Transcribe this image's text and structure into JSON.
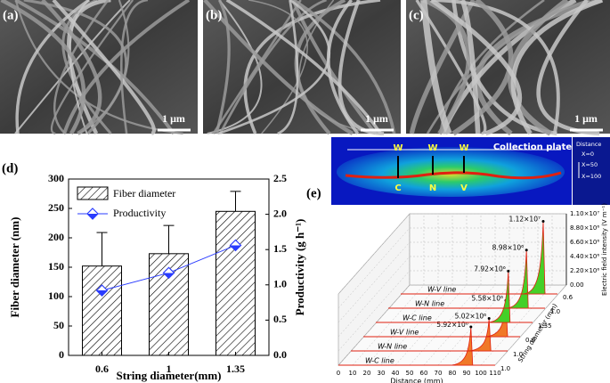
{
  "panels": [
    {
      "label": "(a)",
      "scale_bar": "1 μm"
    },
    {
      "label": "(b)",
      "scale_bar": "1 μm"
    },
    {
      "label": "(c)",
      "scale_bar": "1 μm"
    }
  ],
  "simulation": {
    "title": "Collection plate",
    "top_labels": [
      "W",
      "W",
      "W"
    ],
    "bottom_labels": [
      "C",
      "N",
      "V"
    ],
    "legend_title": "Distance",
    "legend_labels": [
      "X=0",
      "X=50",
      "X=100"
    ]
  },
  "chart_data": [
    {
      "type": "bar",
      "panel_label": "(d)",
      "categories": [
        "0.6",
        "1",
        "1.35"
      ],
      "xlabel": "String diameter(mm)",
      "ylabel": "Fiber diameter (nm)",
      "y2label": "Productivity (g h⁻¹)",
      "series": [
        {
          "name": "Fiber diameter",
          "color": "#000000",
          "values": [
            152,
            173,
            245
          ],
          "errors": [
            57,
            48,
            34
          ]
        },
        {
          "name": "Productivity",
          "type": "line",
          "axis": "y2",
          "color": "#2a3cff",
          "values": [
            0.92,
            1.17,
            1.56
          ]
        }
      ],
      "ylim": [
        0,
        300
      ],
      "yticks": [
        0,
        50,
        100,
        150,
        200,
        250,
        300
      ],
      "y2lim": [
        0,
        2.5
      ],
      "y2ticks": [
        {
          "value": 0,
          "label": "0.0"
        },
        0.5,
        {
          "value": 1,
          "label": "1.0"
        },
        1.5,
        {
          "value": 2,
          "label": "2.0"
        },
        2.5
      ]
    },
    {
      "type": "line3d",
      "panel_label": "(e)",
      "xlabel": "Distance (mm)",
      "zlabel": "Electric field intensity (V m⁻¹)",
      "depth_label": "String diameter (mm)",
      "depth_ticks": [
        "1.0",
        "1.0",
        "0.6",
        "1.35",
        "1.0",
        "0.6"
      ],
      "xlim": [
        0,
        110
      ],
      "xticks": [
        0,
        10,
        20,
        30,
        40,
        50,
        60,
        70,
        80,
        90,
        100,
        110
      ],
      "zlim": [
        0,
        11000000
      ],
      "zticks": [
        {
          "value": 0,
          "label": "0.00"
        },
        {
          "value": 2200000,
          "label": "2.20×10⁶"
        },
        {
          "value": 4400000,
          "label": "4.40×10⁶"
        },
        {
          "value": 6600000,
          "label": "6.60×10⁶"
        },
        {
          "value": 8800000,
          "label": "8.80×10⁶"
        },
        {
          "value": 11000000,
          "label": "1.10×10⁷"
        }
      ],
      "series": [
        {
          "name": "W-C line",
          "color": "#f07828",
          "x": [
            93
          ],
          "values": [
            5920000
          ],
          "value_labels": [
            "5.92×10⁶"
          ]
        },
        {
          "name": "W-N line",
          "color": "#f07828",
          "x": [
            97
          ],
          "values": [
            5020000
          ],
          "value_labels": [
            "5.02×10⁶"
          ]
        },
        {
          "name": "W-V line",
          "color": "#f07828",
          "x": [
            100
          ],
          "values": [
            5580000
          ],
          "value_labels": [
            "5.58×10⁶"
          ]
        },
        {
          "name": "W-C line",
          "color": "#44d028",
          "x": [
            93
          ],
          "values": [
            7920000
          ],
          "value_labels": [
            "7.92×10⁶"
          ]
        },
        {
          "name": "W-N line",
          "color": "#44d028",
          "x": [
            97
          ],
          "values": [
            8980000
          ],
          "value_labels": [
            "8.98×10⁶"
          ]
        },
        {
          "name": "W-V line",
          "color": "#44d028",
          "x": [
            100
          ],
          "values": [
            11200000
          ],
          "value_labels": [
            "1.12×10⁷"
          ]
        }
      ]
    }
  ]
}
